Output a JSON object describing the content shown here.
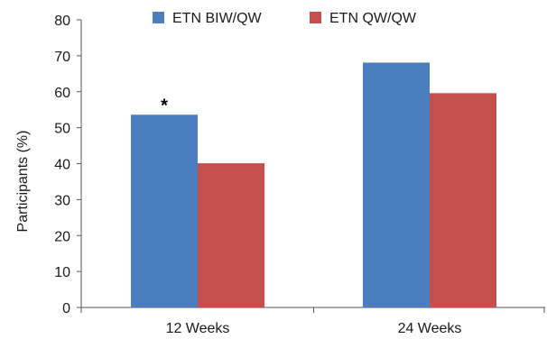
{
  "chart_data": {
    "type": "bar",
    "title": "",
    "xlabel": "",
    "ylabel": "Participants (%)",
    "categories": [
      "12 Weeks",
      "24 Weeks"
    ],
    "series": [
      {
        "name": "ETN BIW/QW",
        "values": [
          53.6,
          68.1
        ],
        "color": "#4a7ebf"
      },
      {
        "name": "ETN QW/QW",
        "values": [
          40.1,
          59.6
        ],
        "color": "#c44f4c"
      }
    ],
    "ylim": [
      0,
      80
    ],
    "yticks": [
      0,
      10,
      20,
      30,
      40,
      50,
      60,
      70,
      80
    ],
    "grid": false,
    "legend_position": "top-center",
    "annotations": [
      {
        "text": "*",
        "category": "12 Weeks",
        "series": "ETN BIW/QW"
      }
    ]
  }
}
